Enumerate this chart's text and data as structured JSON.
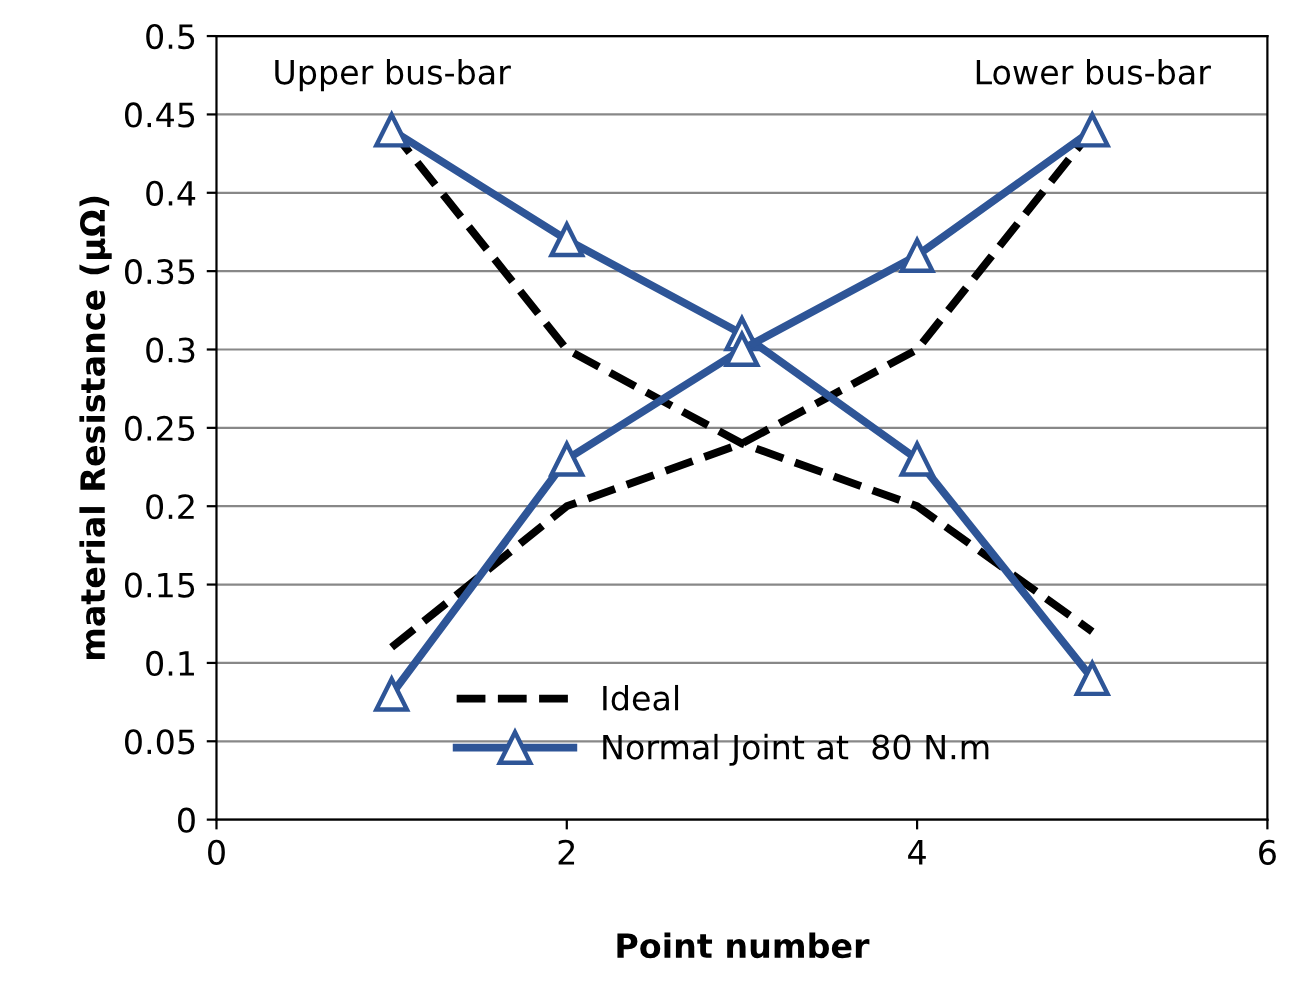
{
  "chart_data": {
    "type": "line",
    "xlabel": "Point number",
    "ylabel": "material Resistance (μΩ)",
    "xlim": [
      0,
      6
    ],
    "xticks": [
      0,
      2,
      4,
      6
    ],
    "ylim": [
      0,
      0.5
    ],
    "yticks": [
      0,
      0.05,
      0.1,
      0.15,
      0.2,
      0.25,
      0.3,
      0.35,
      0.4,
      0.45,
      0.5
    ],
    "grid": "y",
    "legend": "bottom left",
    "series": [
      {
        "name": "Ideal",
        "color": "#000000",
        "line_style": "dashed",
        "marker": "none",
        "x": [
          1,
          2,
          3,
          4,
          5
        ],
        "values": [
          0.44,
          0.3,
          0.24,
          0.2,
          0.12
        ]
      },
      {
        "color": "#000000",
        "line_style": "dashed",
        "marker": "none",
        "x": [
          1,
          2,
          3,
          4,
          5
        ],
        "values": [
          0.11,
          0.2,
          0.24,
          0.3,
          0.44
        ]
      },
      {
        "name": "Normal Joint at  80 N.m",
        "color": "#2e5597",
        "line_style": "solid",
        "marker": "triangle",
        "x": [
          1,
          2,
          3,
          4,
          5
        ],
        "values": [
          0.44,
          0.37,
          0.31,
          0.23,
          0.09
        ]
      },
      {
        "color": "#2e5597",
        "line_style": "solid",
        "marker": "triangle",
        "x": [
          1,
          2,
          3,
          4,
          5
        ],
        "values": [
          0.08,
          0.23,
          0.3,
          0.36,
          0.44
        ]
      }
    ],
    "annotations": [
      {
        "text": "Upper bus-bar",
        "x": 1,
        "y": 0.44
      },
      {
        "text": "Lower bus-bar",
        "x": 5,
        "y": 0.44
      }
    ]
  }
}
